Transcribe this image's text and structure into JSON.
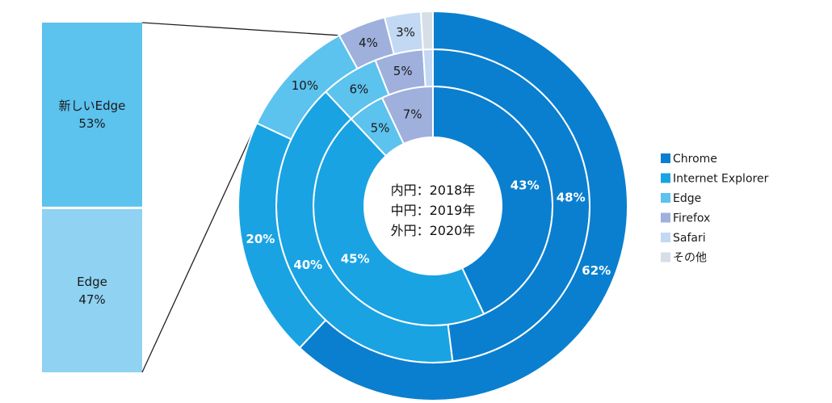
{
  "chart_data": {
    "type": "pie",
    "subtype": "multi-ring-donut",
    "categories": [
      "Chrome",
      "Internet Explorer",
      "Edge",
      "Firefox",
      "Safari",
      "その他"
    ],
    "colors": [
      "#0a7fd0",
      "#19a3e3",
      "#5cc2ee",
      "#9fb0dd",
      "#c2d8f3",
      "#d6dee6"
    ],
    "rings": [
      {
        "name": "内円：2018年",
        "values": [
          43,
          45,
          5,
          7,
          0,
          0
        ],
        "labels": [
          "43%",
          "45%",
          "5%",
          "7%",
          "",
          ""
        ]
      },
      {
        "name": "中円：2019年",
        "values": [
          48,
          40,
          6,
          5,
          1,
          0
        ],
        "labels": [
          "48%",
          "40%",
          "6%",
          "5%",
          "",
          ""
        ]
      },
      {
        "name": "外円：2020年",
        "values": [
          62,
          20,
          10,
          4,
          3,
          1
        ],
        "labels": [
          "62%",
          "20%",
          "10%",
          "4%",
          "3%",
          ""
        ]
      }
    ],
    "center_lines": [
      "内円：2018年",
      "中円：2019年",
      "外円：2020年"
    ],
    "legend_position": "right",
    "breakdown": {
      "of": "Edge",
      "segments": [
        {
          "label_lines": [
            "新しいEdge",
            "53%"
          ],
          "value": 53,
          "color": "#5cc2ee"
        },
        {
          "label_lines": [
            "Edge",
            "47%"
          ],
          "value": 47,
          "color": "#8fd2f2"
        }
      ]
    }
  }
}
